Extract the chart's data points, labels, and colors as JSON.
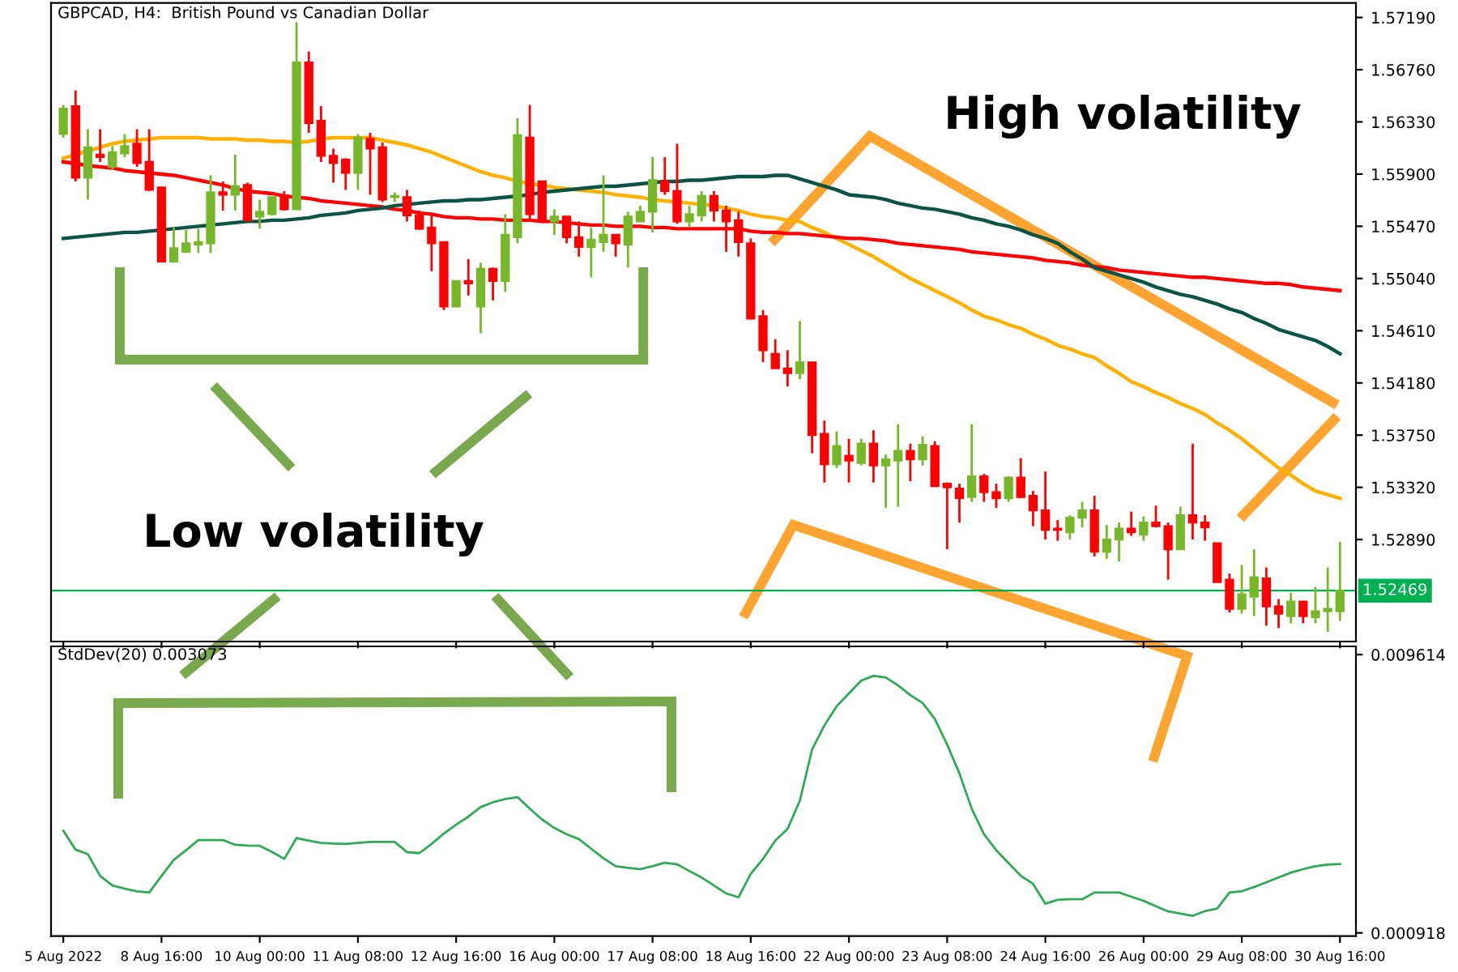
{
  "chart_data": [
    {
      "type": "candlestick",
      "title": "GBPCAD, H4:  British Pound vs Canadian Dollar",
      "ohlc": [
        [
          1.5623,
          1.5647,
          1.562,
          1.5644
        ],
        [
          1.5646,
          1.5659,
          1.5584,
          1.5587
        ],
        [
          1.5587,
          1.5627,
          1.5569,
          1.5612
        ],
        [
          1.5606,
          1.5627,
          1.56,
          1.5604
        ],
        [
          1.5596,
          1.5613,
          1.5594,
          1.5608
        ],
        [
          1.5607,
          1.5623,
          1.5604,
          1.5613
        ],
        [
          1.5615,
          1.5627,
          1.5596,
          1.5599
        ],
        [
          1.56,
          1.5627,
          1.5576,
          1.5577
        ],
        [
          1.5579,
          1.5579,
          1.5518,
          1.5518
        ],
        [
          1.5518,
          1.5546,
          1.5517,
          1.5529
        ],
        [
          1.5526,
          1.5544,
          1.5525,
          1.5533
        ],
        [
          1.5532,
          1.5545,
          1.5525,
          1.5534
        ],
        [
          1.5533,
          1.5589,
          1.5525,
          1.5575
        ],
        [
          1.5575,
          1.5584,
          1.556,
          1.5573
        ],
        [
          1.5573,
          1.5606,
          1.556,
          1.558
        ],
        [
          1.5581,
          1.5583,
          1.5551,
          1.5552
        ],
        [
          1.5555,
          1.5569,
          1.5545,
          1.5559
        ],
        [
          1.5557,
          1.5571,
          1.5556,
          1.5571
        ],
        [
          1.5571,
          1.5576,
          1.556,
          1.5561
        ],
        [
          1.5561,
          1.5715,
          1.5561,
          1.5682
        ],
        [
          1.5682,
          1.5691,
          1.5624,
          1.5632
        ],
        [
          1.5634,
          1.5646,
          1.56,
          1.5605
        ],
        [
          1.5605,
          1.5611,
          1.5583,
          1.5599
        ],
        [
          1.5602,
          1.5603,
          1.5577,
          1.5591
        ],
        [
          1.5591,
          1.5623,
          1.5577,
          1.562
        ],
        [
          1.5619,
          1.5624,
          1.5573,
          1.5611
        ],
        [
          1.5612,
          1.5616,
          1.5567,
          1.5569
        ],
        [
          1.5571,
          1.5575,
          1.5567,
          1.5572
        ],
        [
          1.5571,
          1.5577,
          1.5551,
          1.5556
        ],
        [
          1.5556,
          1.556,
          1.5544,
          1.5545
        ],
        [
          1.5546,
          1.5557,
          1.551,
          1.5533
        ],
        [
          1.5534,
          1.5534,
          1.5478,
          1.5481
        ],
        [
          1.5481,
          1.5502,
          1.5481,
          1.5502
        ],
        [
          1.5502,
          1.552,
          1.549,
          1.55
        ],
        [
          1.5481,
          1.5517,
          1.5459,
          1.5512
        ],
        [
          1.5512,
          1.5513,
          1.5486,
          1.5502
        ],
        [
          1.5502,
          1.5557,
          1.5493,
          1.554
        ],
        [
          1.5538,
          1.5636,
          1.5533,
          1.5622
        ],
        [
          1.562,
          1.5647,
          1.5551,
          1.5557
        ],
        [
          1.5584,
          1.5584,
          1.5551,
          1.5551
        ],
        [
          1.5551,
          1.5561,
          1.554,
          1.5555
        ],
        [
          1.5555,
          1.5555,
          1.5533,
          1.5538
        ],
        [
          1.5538,
          1.5551,
          1.5522,
          1.553
        ],
        [
          1.553,
          1.5546,
          1.5505,
          1.5536
        ],
        [
          1.5534,
          1.5589,
          1.5526,
          1.554
        ],
        [
          1.554,
          1.554,
          1.5522,
          1.5533
        ],
        [
          1.5532,
          1.5559,
          1.5513,
          1.5555
        ],
        [
          1.5551,
          1.5564,
          1.5551,
          1.5559
        ],
        [
          1.5559,
          1.5604,
          1.5542,
          1.5585
        ],
        [
          1.5584,
          1.5604,
          1.5573,
          1.5576
        ],
        [
          1.5576,
          1.5615,
          1.5549,
          1.5551
        ],
        [
          1.5551,
          1.5564,
          1.5546,
          1.5557
        ],
        [
          1.5556,
          1.5576,
          1.5551,
          1.5572
        ],
        [
          1.5572,
          1.5576,
          1.5551,
          1.556
        ],
        [
          1.556,
          1.5564,
          1.5526,
          1.5551
        ],
        [
          1.5552,
          1.5559,
          1.5522,
          1.5534
        ],
        [
          1.5533,
          1.5537,
          1.5471,
          1.5471
        ],
        [
          1.5473,
          1.5478,
          1.5435,
          1.5445
        ],
        [
          1.5442,
          1.5454,
          1.543,
          1.543
        ],
        [
          1.543,
          1.5445,
          1.5415,
          1.5426
        ],
        [
          1.5426,
          1.5469,
          1.5421,
          1.5435
        ],
        [
          1.5435,
          1.5435,
          1.536,
          1.5375
        ],
        [
          1.5376,
          1.5387,
          1.5336,
          1.5351
        ],
        [
          1.5351,
          1.5378,
          1.5348,
          1.5366
        ],
        [
          1.5358,
          1.5372,
          1.5336,
          1.5354
        ],
        [
          1.5352,
          1.5372,
          1.535,
          1.5368
        ],
        [
          1.5368,
          1.5379,
          1.5336,
          1.535
        ],
        [
          1.535,
          1.5359,
          1.5315,
          1.5355
        ],
        [
          1.5354,
          1.5384,
          1.5316,
          1.5362
        ],
        [
          1.5362,
          1.5368,
          1.5337,
          1.5355
        ],
        [
          1.5355,
          1.5374,
          1.535,
          1.5367
        ],
        [
          1.5366,
          1.537,
          1.5333,
          1.5333
        ],
        [
          1.5335,
          1.5336,
          1.5281,
          1.5332
        ],
        [
          1.5331,
          1.5335,
          1.5303,
          1.5323
        ],
        [
          1.5324,
          1.5384,
          1.532,
          1.5341
        ],
        [
          1.5341,
          1.5343,
          1.532,
          1.5328
        ],
        [
          1.5328,
          1.5335,
          1.5315,
          1.5323
        ],
        [
          1.5323,
          1.5341,
          1.532,
          1.534
        ],
        [
          1.534,
          1.5356,
          1.5323,
          1.5324
        ],
        [
          1.5325,
          1.5329,
          1.53,
          1.5313
        ],
        [
          1.5313,
          1.5345,
          1.5289,
          1.5297
        ],
        [
          1.5298,
          1.5305,
          1.5288,
          1.5297
        ],
        [
          1.5295,
          1.5309,
          1.5289,
          1.5307
        ],
        [
          1.5307,
          1.532,
          1.5299,
          1.5313
        ],
        [
          1.5313,
          1.5325,
          1.5275,
          1.5279
        ],
        [
          1.5279,
          1.5301,
          1.5273,
          1.5289
        ],
        [
          1.5289,
          1.5303,
          1.5271,
          1.5298
        ],
        [
          1.5298,
          1.5312,
          1.5292,
          1.5295
        ],
        [
          1.5293,
          1.5308,
          1.5288,
          1.5303
        ],
        [
          1.5303,
          1.5317,
          1.5299,
          1.53
        ],
        [
          1.53,
          1.5303,
          1.5256,
          1.5281
        ],
        [
          1.5281,
          1.5316,
          1.5281,
          1.5309
        ],
        [
          1.5309,
          1.5368,
          1.5289,
          1.5303
        ],
        [
          1.5303,
          1.5309,
          1.5288,
          1.5299
        ],
        [
          1.5286,
          1.5286,
          1.5254,
          1.5254
        ],
        [
          1.5256,
          1.5261,
          1.5229,
          1.5232
        ],
        [
          1.5232,
          1.5268,
          1.5228,
          1.5244
        ],
        [
          1.5242,
          1.5281,
          1.5226,
          1.5258
        ],
        [
          1.5257,
          1.5266,
          1.5218,
          1.5234
        ],
        [
          1.5234,
          1.524,
          1.5216,
          1.5228
        ],
        [
          1.5226,
          1.5245,
          1.522,
          1.5238
        ],
        [
          1.5238,
          1.5238,
          1.522,
          1.5226
        ],
        [
          1.5225,
          1.525,
          1.522,
          1.523
        ],
        [
          1.523,
          1.5266,
          1.5213,
          1.5232
        ],
        [
          1.523,
          1.5287,
          1.5222,
          1.5247
        ]
      ],
      "colors": [
        "#76b82a",
        "#ff0000",
        "#76b82a",
        "#ff0000",
        "#76b82a",
        "#76b82a",
        "#ff0000",
        "#ff0000",
        "#ff0000",
        "#76b82a",
        "#76b82a",
        "#76b82a",
        "#76b82a",
        "#ff0000",
        "#76b82a",
        "#ff0000",
        "#76b82a",
        "#76b82a",
        "#ff0000",
        "#76b82a",
        "#ff0000",
        "#ff0000",
        "#ff0000",
        "#ff0000",
        "#76b82a",
        "#ff0000",
        "#ff0000",
        "#76b82a",
        "#ff0000",
        "#ff0000",
        "#ff0000",
        "#ff0000",
        "#76b82a",
        "#ff0000",
        "#76b82a",
        "#ff0000",
        "#76b82a",
        "#76b82a",
        "#ff0000",
        "#ff0000",
        "#76b82a",
        "#ff0000",
        "#ff0000",
        "#76b82a",
        "#76b82a",
        "#ff0000",
        "#76b82a",
        "#76b82a",
        "#76b82a",
        "#ff0000",
        "#ff0000",
        "#76b82a",
        "#76b82a",
        "#ff0000",
        "#ff0000",
        "#ff0000",
        "#ff0000",
        "#ff0000",
        "#ff0000",
        "#ff0000",
        "#76b82a",
        "#ff0000",
        "#ff0000",
        "#76b82a",
        "#ff0000",
        "#76b82a",
        "#ff0000",
        "#76b82a",
        "#76b82a",
        "#ff0000",
        "#76b82a",
        "#ff0000",
        "#ff0000",
        "#ff0000",
        "#76b82a",
        "#ff0000",
        "#ff0000",
        "#76b82a",
        "#ff0000",
        "#ff0000",
        "#ff0000",
        "#ff0000",
        "#76b82a",
        "#76b82a",
        "#ff0000",
        "#76b82a",
        "#76b82a",
        "#ff0000",
        "#76b82a",
        "#ff0000",
        "#ff0000",
        "#76b82a",
        "#ff0000",
        "#ff0000",
        "#ff0000",
        "#ff0000",
        "#76b82a",
        "#76b82a",
        "#ff0000",
        "#ff0000",
        "#76b82a",
        "#ff0000",
        "#76b82a",
        "#76b82a",
        "#76b82a"
      ],
      "series": [
        {
          "type": "line",
          "color": "#ffb000",
          "values": [
            1.5603,
            1.5606,
            1.5609,
            1.5612,
            1.5615,
            1.5617,
            1.5618,
            1.5619,
            1.562,
            1.562,
            1.562,
            1.562,
            1.5619,
            1.5619,
            1.5619,
            1.5618,
            1.5618,
            1.5617,
            1.5617,
            1.5616,
            1.5617,
            1.5619,
            1.562,
            1.562,
            1.562,
            1.562,
            1.5618,
            1.5616,
            1.5614,
            1.5611,
            1.5608,
            1.5604,
            1.56,
            1.5596,
            1.5592,
            1.5589,
            1.5587,
            1.5584,
            1.5582,
            1.5581,
            1.5579,
            1.5578,
            1.5577,
            1.5576,
            1.5575,
            1.5573,
            1.5572,
            1.5571,
            1.5569,
            1.5568,
            1.5567,
            1.5566,
            1.5565,
            1.5564,
            1.5562,
            1.556,
            1.5557,
            1.5555,
            1.5554,
            1.5552,
            1.5551,
            1.5546,
            1.5542,
            1.5537,
            1.5532,
            1.5527,
            1.5522,
            1.5516,
            1.551,
            1.5504,
            1.5499,
            1.5494,
            1.5489,
            1.5484,
            1.5478,
            1.5473,
            1.547,
            1.5466,
            1.5463,
            1.5458,
            1.5454,
            1.5449,
            1.5446,
            1.5442,
            1.5439,
            1.5432,
            1.5426,
            1.5419,
            1.5415,
            1.541,
            1.5406,
            1.5401,
            1.5397,
            1.5392,
            1.5385,
            1.5379,
            1.5372,
            1.5364,
            1.5356,
            1.5348,
            1.5342,
            1.5335,
            1.5329,
            1.5326,
            1.5323
          ]
        },
        {
          "type": "line",
          "color": "#ff0000",
          "values": [
            1.56,
            1.5599,
            1.5597,
            1.5596,
            1.5595,
            1.5593,
            1.5592,
            1.5591,
            1.559,
            1.5589,
            1.5587,
            1.5585,
            1.5583,
            1.5581,
            1.5578,
            1.5576,
            1.5575,
            1.5574,
            1.5572,
            1.5571,
            1.557,
            1.5568,
            1.5567,
            1.5566,
            1.5565,
            1.5564,
            1.5563,
            1.5561,
            1.556,
            1.5558,
            1.5557,
            1.5555,
            1.5554,
            1.5554,
            1.5553,
            1.5553,
            1.5552,
            1.5552,
            1.5552,
            1.5551,
            1.5551,
            1.555,
            1.5549,
            1.5548,
            1.5548,
            1.5547,
            1.5547,
            1.5547,
            1.5546,
            1.5546,
            1.5545,
            1.5545,
            1.5545,
            1.5545,
            1.5545,
            1.5545,
            1.5543,
            1.5542,
            1.5542,
            1.5541,
            1.5541,
            1.554,
            1.5539,
            1.5538,
            1.5537,
            1.5537,
            1.5536,
            1.5535,
            1.5533,
            1.5532,
            1.5531,
            1.553,
            1.5529,
            1.5528,
            1.5526,
            1.5525,
            1.5524,
            1.5523,
            1.5522,
            1.5521,
            1.5519,
            1.5518,
            1.5517,
            1.5515,
            1.5514,
            1.5513,
            1.5511,
            1.551,
            1.5509,
            1.5508,
            1.5507,
            1.5506,
            1.5505,
            1.5505,
            1.5504,
            1.5503,
            1.5502,
            1.5501,
            1.55,
            1.55,
            1.5499,
            1.5497,
            1.5496,
            1.5495,
            1.5494
          ]
        },
        {
          "type": "line",
          "color": "#0b5345",
          "values": [
            1.5537,
            1.5538,
            1.5539,
            1.554,
            1.5541,
            1.5542,
            1.5542,
            1.5543,
            1.5544,
            1.5545,
            1.5546,
            1.5547,
            1.5548,
            1.5549,
            1.555,
            1.5551,
            1.5551,
            1.5552,
            1.5552,
            1.5553,
            1.5554,
            1.5556,
            1.5557,
            1.5558,
            1.556,
            1.5561,
            1.5562,
            1.5564,
            1.5565,
            1.5566,
            1.5567,
            1.5568,
            1.5568,
            1.5569,
            1.5569,
            1.557,
            1.5571,
            1.5572,
            1.5573,
            1.5575,
            1.5576,
            1.5577,
            1.5578,
            1.5579,
            1.558,
            1.558,
            1.5581,
            1.5582,
            1.5583,
            1.5584,
            1.5584,
            1.5585,
            1.5585,
            1.5586,
            1.5587,
            1.5588,
            1.5588,
            1.5588,
            1.5589,
            1.5589,
            1.5586,
            1.5583,
            1.558,
            1.5577,
            1.5573,
            1.5572,
            1.5571,
            1.5569,
            1.5566,
            1.5564,
            1.5562,
            1.5561,
            1.5559,
            1.5557,
            1.5554,
            1.5552,
            1.5549,
            1.5547,
            1.5544,
            1.554,
            1.5537,
            1.5533,
            1.5526,
            1.552,
            1.5513,
            1.551,
            1.5507,
            1.5504,
            1.5501,
            1.5497,
            1.5494,
            1.5491,
            1.5489,
            1.5486,
            1.5483,
            1.5479,
            1.5476,
            1.5471,
            1.5467,
            1.5462,
            1.5459,
            1.5456,
            1.5453,
            1.5448,
            1.5442
          ]
        }
      ],
      "ylim": [
        1.5205,
        1.5731
      ],
      "yticks": [
        {
          "value": 1.5719,
          "label": "1.57190"
        },
        {
          "value": 1.5676,
          "label": "1.56760"
        },
        {
          "value": 1.5633,
          "label": "1.56330"
        },
        {
          "value": 1.559,
          "label": "1.55900"
        },
        {
          "value": 1.5547,
          "label": "1.55470"
        },
        {
          "value": 1.5504,
          "label": "1.55040"
        },
        {
          "value": 1.5461,
          "label": "1.54610"
        },
        {
          "value": 1.5418,
          "label": "1.54180"
        },
        {
          "value": 1.5375,
          "label": "1.53750"
        },
        {
          "value": 1.5332,
          "label": "1.53320"
        },
        {
          "value": 1.5289,
          "label": "1.52890"
        }
      ],
      "ref_lines": [
        {
          "axis": "y",
          "value": 1.52469,
          "label": "1.52469",
          "color": "#00b050"
        }
      ],
      "annotations": [
        "High volatility",
        "Low volatility"
      ],
      "tick_labels": "y"
    },
    {
      "type": "line",
      "title": "StdDev(20) 0.003073",
      "categories": [
        "5 Aug 2022",
        null,
        null,
        null,
        null,
        null,
        null,
        null,
        "8 Aug 16:00",
        null,
        null,
        null,
        null,
        null,
        null,
        null,
        "10 Aug 00:00",
        null,
        null,
        null,
        null,
        null,
        null,
        null,
        "11 Aug 08:00",
        null,
        null,
        null,
        null,
        null,
        null,
        null,
        "12 Aug 16:00",
        null,
        null,
        null,
        null,
        null,
        null,
        null,
        "16 Aug 00:00",
        null,
        null,
        null,
        null,
        null,
        null,
        null,
        "17 Aug 08:00",
        null,
        null,
        null,
        null,
        null,
        null,
        null,
        "18 Aug 16:00",
        null,
        null,
        null,
        null,
        null,
        null,
        null,
        "22 Aug 00:00",
        null,
        null,
        null,
        null,
        null,
        null,
        null,
        "23 Aug 08:00",
        null,
        null,
        null,
        null,
        null,
        null,
        null,
        "24 Aug 16:00",
        null,
        null,
        null,
        null,
        null,
        null,
        null,
        "26 Aug 00:00",
        null,
        null,
        null,
        null,
        null,
        null,
        null,
        "29 Aug 08:00",
        null,
        null,
        null,
        null,
        null,
        null,
        null,
        "30 Aug 16:00"
      ],
      "series": [
        {
          "color": "#2eaa55",
          "values": [
            0.00411,
            0.00352,
            0.00338,
            0.0027,
            0.0024,
            0.0023,
            0.00222,
            0.00218,
            0.0027,
            0.0032,
            0.0035,
            0.00382,
            0.00382,
            0.00382,
            0.00367,
            0.00365,
            0.00364,
            0.00345,
            0.00323,
            0.00388,
            0.0038,
            0.00373,
            0.00371,
            0.0037,
            0.00373,
            0.00376,
            0.00376,
            0.00376,
            0.00344,
            0.00341,
            0.0037,
            0.00402,
            0.0043,
            0.00455,
            0.00485,
            0.005,
            0.0051,
            0.00516,
            0.0048,
            0.00446,
            0.0042,
            0.004,
            0.00385,
            0.00355,
            0.00325,
            0.003,
            0.00295,
            0.00291,
            0.003,
            0.00311,
            0.00306,
            0.00285,
            0.00265,
            0.0024,
            0.00215,
            0.00203,
            0.00276,
            0.00323,
            0.0038,
            0.00417,
            0.00505,
            0.00665,
            0.0074,
            0.008,
            0.0084,
            0.0088,
            0.00895,
            0.0089,
            0.00865,
            0.00835,
            0.0081,
            0.0076,
            0.0068,
            0.0059,
            0.0048,
            0.004,
            0.0035,
            0.0031,
            0.0027,
            0.00245,
            0.00183,
            0.00195,
            0.00197,
            0.00197,
            0.00218,
            0.00218,
            0.00218,
            0.00205,
            0.00192,
            0.00175,
            0.00159,
            0.00152,
            0.00145,
            0.0016,
            0.00168,
            0.00218,
            0.00222,
            0.00235,
            0.0025,
            0.00265,
            0.0028,
            0.00291,
            0.003,
            0.00305,
            0.00307
          ]
        }
      ],
      "ylim": [
        0.00082,
        0.00987
      ],
      "yticks": [
        0.009614,
        0.000918
      ]
    }
  ]
}
